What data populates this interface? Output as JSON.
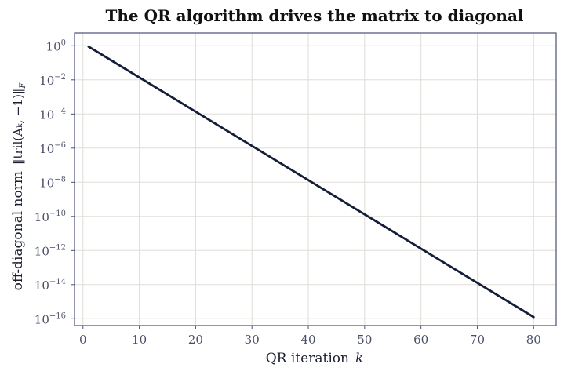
{
  "chart_data": {
    "type": "line",
    "title": "The QR algorithm drives the matrix to diagonal",
    "xlabel_text": "QR iteration",
    "xlabel_var": "k",
    "ylabel_text": "off-diagonal norm",
    "ylabel_formula": "‖tril(Aₖ, −1)‖",
    "ylabel_formula_sub": "F",
    "x_ticks": [
      0,
      10,
      20,
      30,
      40,
      50,
      60,
      70,
      80
    ],
    "y_tick_exponents": [
      0,
      -2,
      -4,
      -6,
      -8,
      -10,
      -12,
      -14,
      -16
    ],
    "y_tick_base": "10",
    "xlim": [
      -1.5,
      84
    ],
    "ylim_log10": [
      -16.4,
      0.75
    ],
    "y_scale": "log",
    "grid": true,
    "series": [
      {
        "x": [
          1,
          80
        ],
        "y_log10": [
          -0.05,
          -15.9
        ]
      }
    ],
    "colors": {
      "line": "#141d3a",
      "grid": "#e0ddd6",
      "frame": "#4a4f75",
      "text": "#4a4f66"
    }
  }
}
